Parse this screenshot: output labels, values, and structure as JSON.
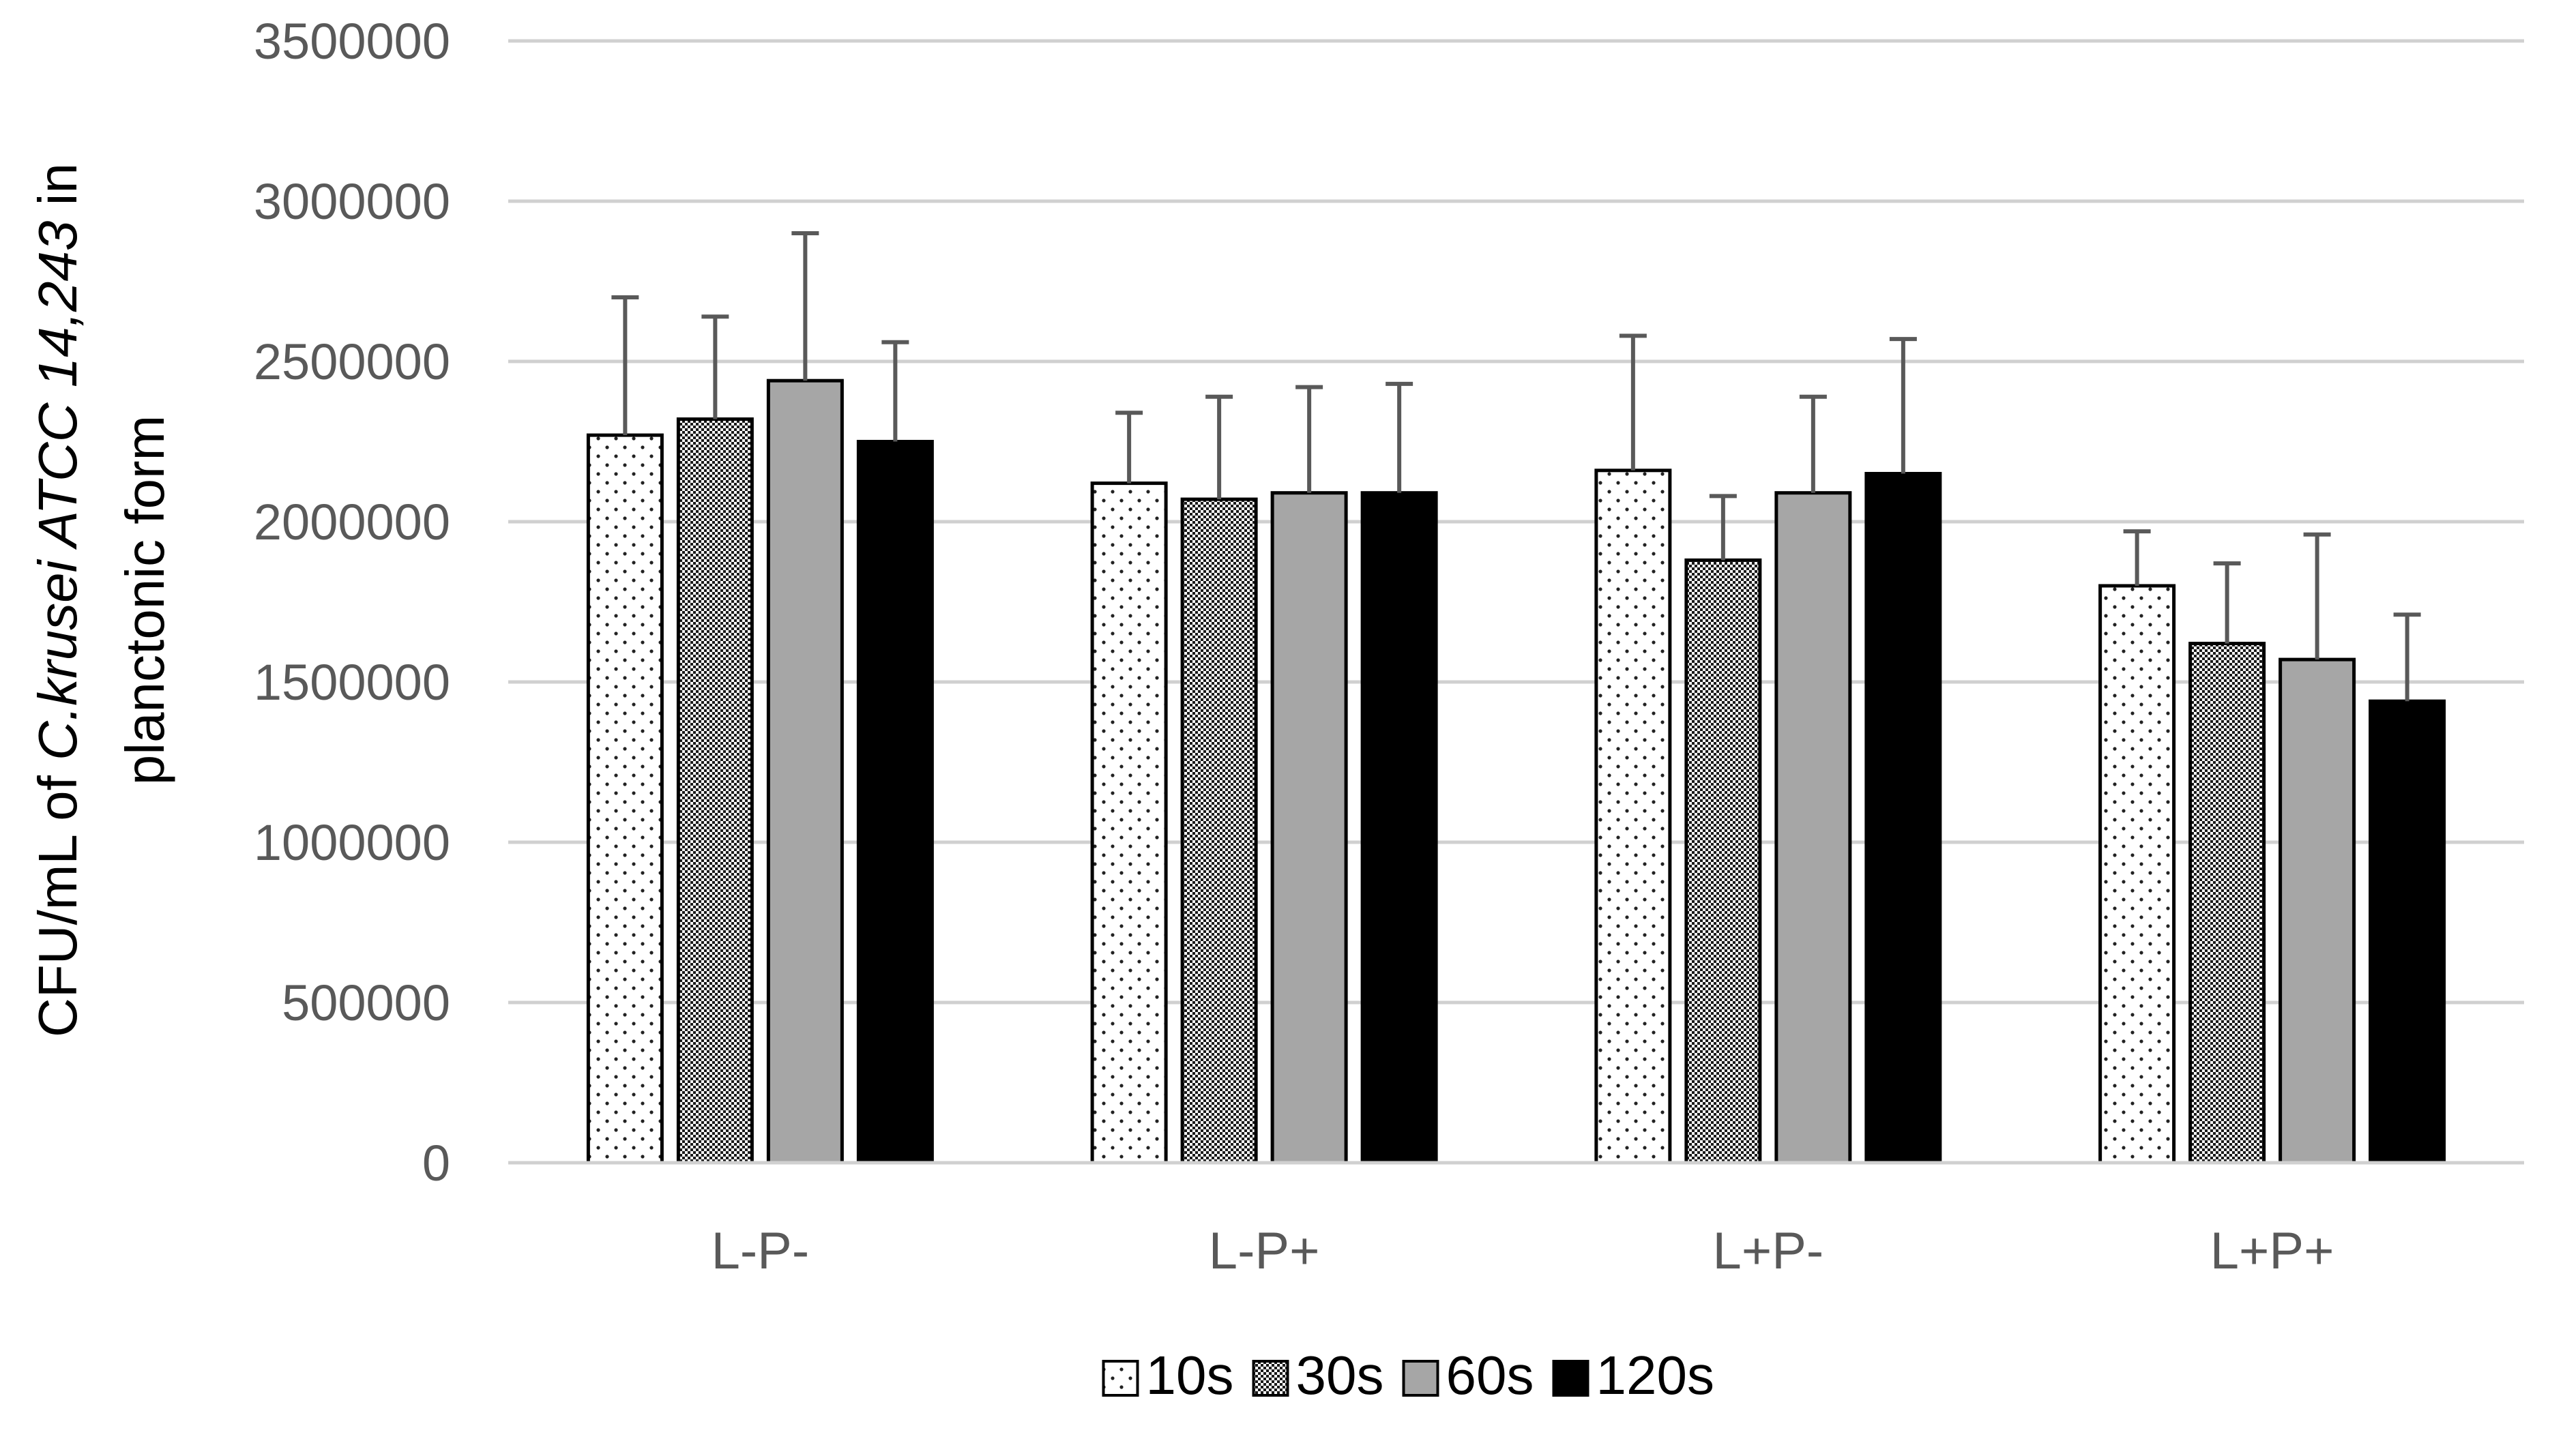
{
  "chart_data": {
    "type": "bar",
    "title": "",
    "xlabel": "",
    "ylabel_lines": [
      [
        {
          "text": "CFU/mL of ",
          "italic": false
        },
        {
          "text": "C.krusei ATCC 14,243",
          "italic": true
        },
        {
          "text": "  in",
          "italic": false
        }
      ],
      [
        {
          "text": "planctonic form",
          "italic": false
        }
      ]
    ],
    "ylim": [
      0,
      3500000
    ],
    "yticks": [
      0,
      500000,
      1000000,
      1500000,
      2000000,
      2500000,
      3000000,
      3500000
    ],
    "ytick_labels": [
      "0",
      "500000",
      "1000000",
      "1500000",
      "2000000",
      "2500000",
      "3000000",
      "3500000"
    ],
    "categories": [
      "L-P-",
      "L-P+",
      "L+P-",
      "L+P+"
    ],
    "grid": true,
    "legend_position": "bottom",
    "series": [
      {
        "name": "10s",
        "pattern": "dots",
        "values": [
          2270000,
          2120000,
          2160000,
          1800000
        ],
        "errors": [
          430000,
          220000,
          420000,
          170000
        ]
      },
      {
        "name": "30s",
        "pattern": "checker",
        "values": [
          2320000,
          2070000,
          1880000,
          1620000
        ],
        "errors": [
          320000,
          320000,
          200000,
          250000
        ]
      },
      {
        "name": "60s",
        "pattern": "solid-gray",
        "color": "#a6a6a6",
        "values": [
          2440000,
          2090000,
          2090000,
          1570000
        ],
        "errors": [
          460000,
          330000,
          300000,
          390000
        ]
      },
      {
        "name": "120s",
        "pattern": "solid-black",
        "color": "#000000",
        "values": [
          2250000,
          2090000,
          2150000,
          1440000
        ],
        "errors": [
          310000,
          340000,
          420000,
          270000
        ]
      }
    ]
  }
}
